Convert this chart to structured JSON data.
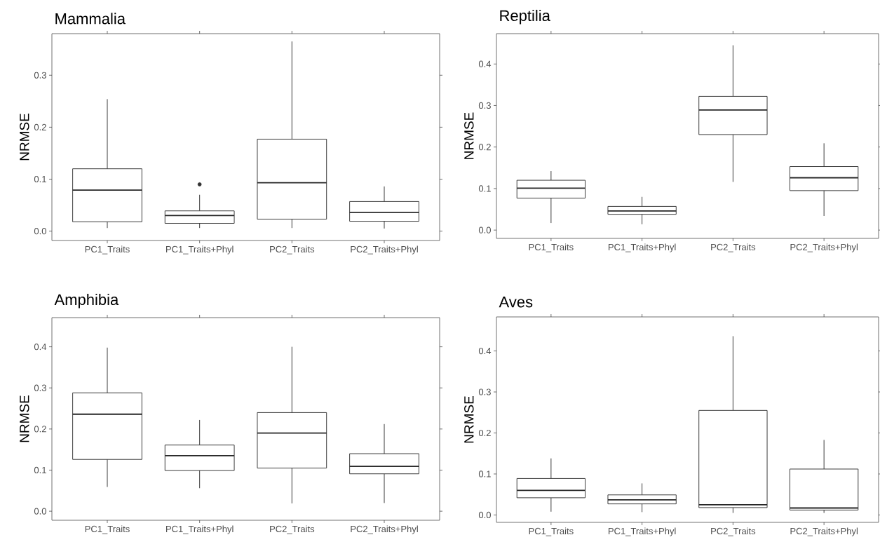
{
  "chart_data": [
    {
      "type": "box",
      "title": "Mammalia",
      "ylabel": "NRMSE",
      "categories": [
        "PC1_Traits",
        "PC1_Traits+Phyl",
        "PC2_Traits",
        "PC2_Traits+Phyl"
      ],
      "boxes": [
        {
          "low": 0.006,
          "q1": 0.018,
          "median": 0.079,
          "q3": 0.12,
          "high": 0.254
        },
        {
          "low": 0.006,
          "q1": 0.015,
          "median": 0.03,
          "q3": 0.039,
          "high": 0.07,
          "outliers": [
            0.09
          ]
        },
        {
          "low": 0.006,
          "q1": 0.023,
          "median": 0.093,
          "q3": 0.177,
          "high": 0.365
        },
        {
          "low": 0.005,
          "q1": 0.019,
          "median": 0.036,
          "q3": 0.057,
          "high": 0.086
        }
      ],
      "ylim": [
        -0.018,
        0.38
      ],
      "yticks": [
        {
          "value": 0,
          "label": "0.0"
        },
        {
          "value": 0.1,
          "label": "0.1"
        },
        {
          "value": 0.2,
          "label": "0.2"
        },
        {
          "value": 0.3,
          "label": "0.3"
        }
      ],
      "grid": false
    },
    {
      "type": "box",
      "title": "Reptilia",
      "ylabel": "NRMSE",
      "categories": [
        "PC1_Traits",
        "PC1_Traits+Phyl",
        "PC2_Traits",
        "PC2_Traits+Phyl"
      ],
      "boxes": [
        {
          "low": 0.017,
          "q1": 0.077,
          "median": 0.101,
          "q3": 0.12,
          "high": 0.142
        },
        {
          "low": 0.014,
          "q1": 0.038,
          "median": 0.046,
          "q3": 0.057,
          "high": 0.08
        },
        {
          "low": 0.116,
          "q1": 0.23,
          "median": 0.289,
          "q3": 0.322,
          "high": 0.445
        },
        {
          "low": 0.034,
          "q1": 0.095,
          "median": 0.126,
          "q3": 0.153,
          "high": 0.209
        }
      ],
      "ylim": [
        -0.02,
        0.473
      ],
      "yticks": [
        {
          "value": 0,
          "label": "0.0"
        },
        {
          "value": 0.1,
          "label": "0.1"
        },
        {
          "value": 0.2,
          "label": "0.2"
        },
        {
          "value": 0.3,
          "label": "0.3"
        },
        {
          "value": 0.4,
          "label": "0.4"
        }
      ],
      "grid": false
    },
    {
      "type": "box",
      "title": "Amphibia",
      "ylabel": "NRMSE",
      "categories": [
        "PC1_Traits",
        "PC1_Traits+Phyl",
        "PC2_Traits",
        "PC2_Traits+Phyl"
      ],
      "boxes": [
        {
          "low": 0.059,
          "q1": 0.126,
          "median": 0.236,
          "q3": 0.288,
          "high": 0.398
        },
        {
          "low": 0.056,
          "q1": 0.099,
          "median": 0.135,
          "q3": 0.161,
          "high": 0.222
        },
        {
          "low": 0.019,
          "q1": 0.105,
          "median": 0.19,
          "q3": 0.24,
          "high": 0.4
        },
        {
          "low": 0.02,
          "q1": 0.091,
          "median": 0.109,
          "q3": 0.14,
          "high": 0.212
        }
      ],
      "ylim": [
        -0.022,
        0.471
      ],
      "yticks": [
        {
          "value": 0,
          "label": "0.0"
        },
        {
          "value": 0.1,
          "label": "0.1"
        },
        {
          "value": 0.2,
          "label": "0.2"
        },
        {
          "value": 0.3,
          "label": "0.3"
        },
        {
          "value": 0.4,
          "label": "0.4"
        }
      ],
      "grid": false
    },
    {
      "type": "box",
      "title": "Aves",
      "ylabel": "NRMSE",
      "categories": [
        "PC1_Traits",
        "PC1_Traits+Phyl",
        "PC2_Traits",
        "PC2_Traits+Phyl"
      ],
      "boxes": [
        {
          "low": 0.008,
          "q1": 0.042,
          "median": 0.06,
          "q3": 0.089,
          "high": 0.138
        },
        {
          "low": 0.007,
          "q1": 0.027,
          "median": 0.037,
          "q3": 0.049,
          "high": 0.077
        },
        {
          "low": 0.005,
          "q1": 0.018,
          "median": 0.025,
          "q3": 0.255,
          "high": 0.436
        },
        {
          "low": 0.005,
          "q1": 0.012,
          "median": 0.017,
          "q3": 0.112,
          "high": 0.183
        }
      ],
      "ylim": [
        -0.018,
        0.483
      ],
      "yticks": [
        {
          "value": 0,
          "label": "0.0"
        },
        {
          "value": 0.1,
          "label": "0.1"
        },
        {
          "value": 0.2,
          "label": "0.2"
        },
        {
          "value": 0.3,
          "label": "0.3"
        },
        {
          "value": 0.4,
          "label": "0.4"
        }
      ],
      "grid": false
    }
  ]
}
